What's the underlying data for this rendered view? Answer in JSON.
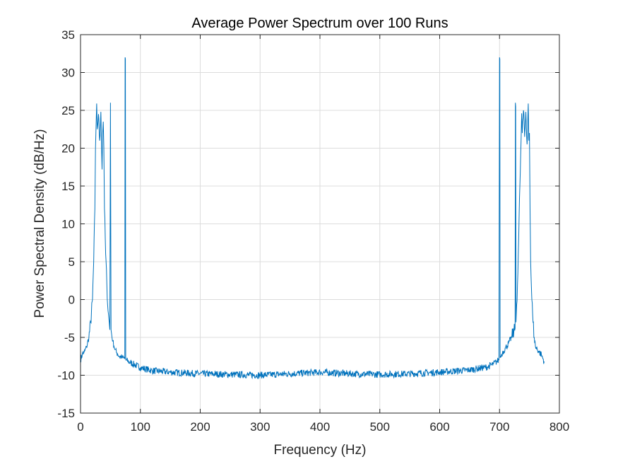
{
  "chart_data": {
    "type": "line",
    "title": "Average Power Spectrum over 100 Runs",
    "xlabel": "Frequency (Hz)",
    "ylabel": "Power Spectral Density (dB/Hz)",
    "xlim": [
      0,
      800
    ],
    "ylim": [
      -15,
      35
    ],
    "xticks": [
      0,
      100,
      200,
      300,
      400,
      500,
      600,
      700,
      800
    ],
    "yticks": [
      -15,
      -10,
      -5,
      0,
      5,
      10,
      15,
      20,
      25,
      30,
      35
    ],
    "grid": true,
    "line_color": "#0072BD",
    "series": [
      {
        "x": [
          0,
          3,
          6,
          10,
          14,
          17,
          20,
          22,
          24,
          25,
          26,
          27,
          28,
          30,
          32,
          34,
          36,
          37,
          38,
          39,
          40,
          42,
          44,
          46,
          48,
          49,
          50,
          51,
          52,
          54,
          56,
          58,
          60,
          62,
          65,
          68,
          70,
          72,
          74,
          74.5,
          75,
          75.5,
          76,
          80,
          90,
          100,
          120,
          150,
          200,
          250,
          300,
          350,
          400,
          450,
          500,
          550,
          600,
          650,
          680,
          690,
          695,
          699,
          700,
          700.5,
          701,
          701.5,
          702,
          705,
          710,
          715,
          720,
          724,
          726,
          726.5,
          727,
          727.5,
          728,
          730,
          732,
          734,
          736,
          737,
          738,
          740,
          742,
          744,
          746,
          748,
          749,
          750,
          751,
          752,
          754,
          756,
          758,
          760,
          765,
          770,
          775
        ],
        "y": [
          -8.0,
          -7.2,
          -7.0,
          -6.3,
          -5.0,
          -3.0,
          0.0,
          5.0,
          12.0,
          20.0,
          23.0,
          25.9,
          22.5,
          24.5,
          21.0,
          24.8,
          17.2,
          22.0,
          23.5,
          20.0,
          12.0,
          6.0,
          2.0,
          -1.5,
          -3.0,
          -4.0,
          26.0,
          -4.0,
          -4.6,
          -5.5,
          -6.2,
          -6.6,
          -7.0,
          -7.2,
          -7.5,
          -7.6,
          -7.7,
          -7.7,
          -7.8,
          32.0,
          31.8,
          -7.9,
          -8.0,
          -8.2,
          -8.6,
          -9.0,
          -9.4,
          -9.6,
          -9.8,
          -9.9,
          -10.0,
          -9.8,
          -9.6,
          -9.8,
          -9.9,
          -9.8,
          -9.6,
          -9.3,
          -8.9,
          -8.5,
          -8.2,
          -8.0,
          32.0,
          31.8,
          -7.7,
          -7.6,
          -7.5,
          -7.0,
          -6.4,
          -5.8,
          -5.0,
          -4.2,
          -3.8,
          26.0,
          25.5,
          -3.0,
          -2.0,
          2.0,
          8.0,
          15.0,
          21.0,
          24.6,
          22.0,
          25.0,
          21.5,
          24.8,
          20.5,
          25.9,
          21.0,
          22.0,
          12.0,
          5.0,
          0.0,
          -3.0,
          -5.0,
          -6.2,
          -6.8,
          -7.3,
          -8.3
        ]
      }
    ]
  }
}
